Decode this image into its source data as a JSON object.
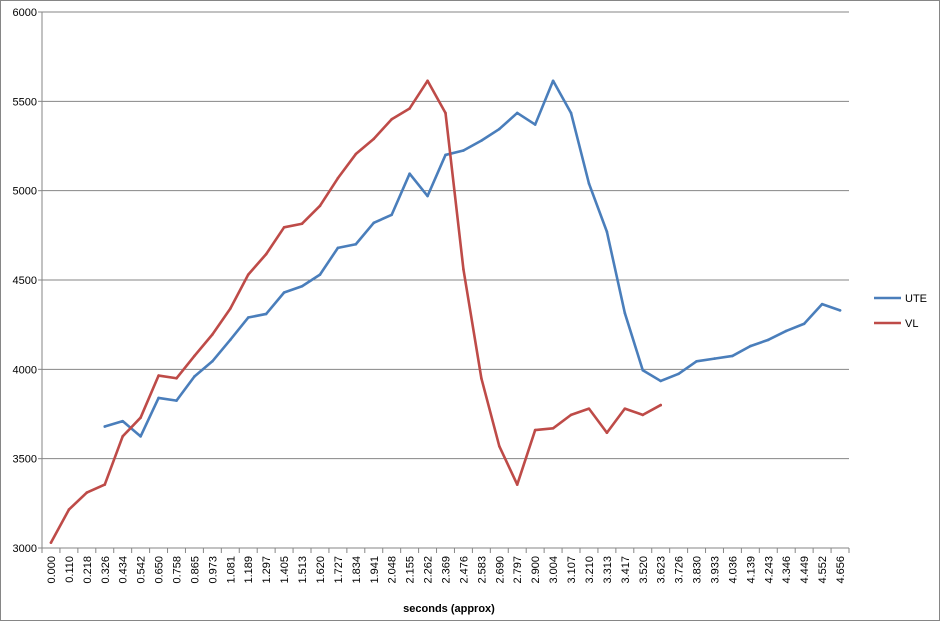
{
  "chart_data": {
    "type": "line",
    "title": "",
    "xlabel": "seconds (approx)",
    "ylabel": "",
    "ylim": [
      3000,
      6000
    ],
    "yticks": [
      3000,
      3500,
      4000,
      4500,
      5000,
      5500,
      6000
    ],
    "grid": true,
    "legend_position": "right",
    "categories": [
      "0.000",
      "0.110",
      "0.218",
      "0.326",
      "0.434",
      "0.542",
      "0.650",
      "0.758",
      "0.865",
      "0.973",
      "1.081",
      "1.189",
      "1.297",
      "1.405",
      "1.513",
      "1.620",
      "1.727",
      "1.834",
      "1.941",
      "2.048",
      "2.155",
      "2.262",
      "2.369",
      "2.476",
      "2.583",
      "2.690",
      "2.797",
      "2.900",
      "3.004",
      "3.107",
      "3.210",
      "3.313",
      "3.417",
      "3.520",
      "3.623",
      "3.726",
      "3.830",
      "3.933",
      "4.036",
      "4.139",
      "4.243",
      "4.346",
      "4.449",
      "4.552",
      "4.656"
    ],
    "series": [
      {
        "name": "UTE",
        "color": "#4a7ebb",
        "values": [
          null,
          null,
          null,
          3680,
          3710,
          3625,
          3840,
          3825,
          3960,
          4045,
          4165,
          4290,
          4310,
          4430,
          4465,
          4530,
          4680,
          4700,
          4820,
          4865,
          5095,
          4970,
          5200,
          5225,
          5280,
          5345,
          5435,
          5370,
          5615,
          5435,
          5040,
          4770,
          4315,
          3995,
          3935,
          3975,
          4045,
          4060,
          4075,
          4130,
          4165,
          4215,
          4255,
          4365,
          4330
        ]
      },
      {
        "name": "VL",
        "color": "#be4b48",
        "values": [
          3030,
          3215,
          3310,
          3355,
          3625,
          3730,
          3965,
          3950,
          4075,
          4195,
          4340,
          4530,
          4645,
          4795,
          4815,
          4915,
          5070,
          5205,
          5290,
          5400,
          5460,
          5615,
          5435,
          4560,
          3950,
          3570,
          3355,
          3660,
          3670,
          3745,
          3780,
          3645,
          3780,
          3745,
          3800,
          null,
          null,
          null,
          null,
          null,
          null,
          null,
          null,
          null,
          null
        ]
      }
    ]
  }
}
